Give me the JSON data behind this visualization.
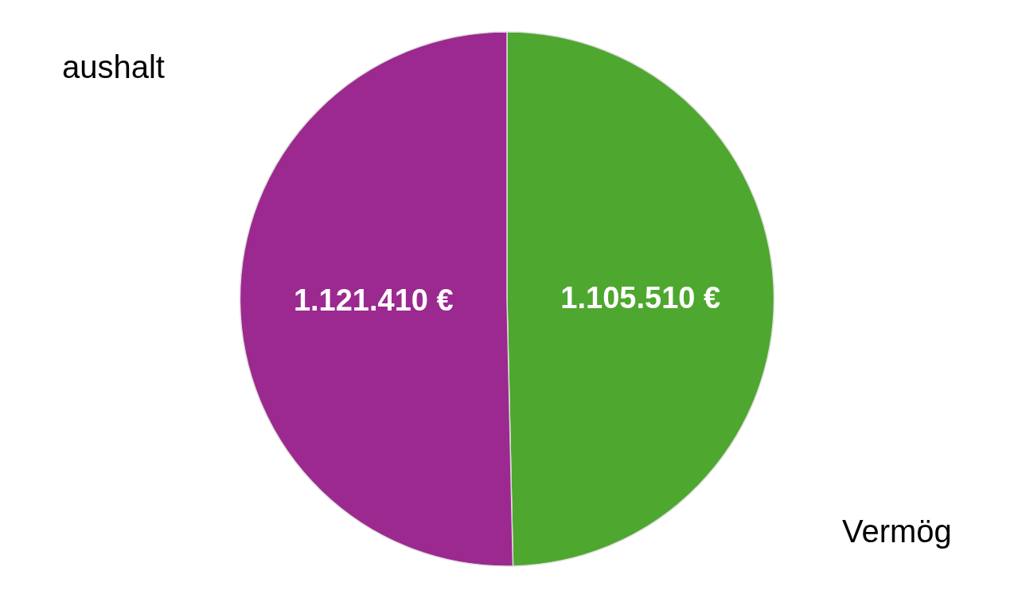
{
  "chart_data": {
    "type": "pie",
    "categories": [
      "Vermög",
      "aushalt"
    ],
    "values": [
      1105510,
      1121410
    ],
    "colors": [
      "#4ea72e",
      "#9c298f"
    ],
    "value_labels": [
      "1.105.510 €",
      "1.121.410 €"
    ],
    "legend": false
  }
}
